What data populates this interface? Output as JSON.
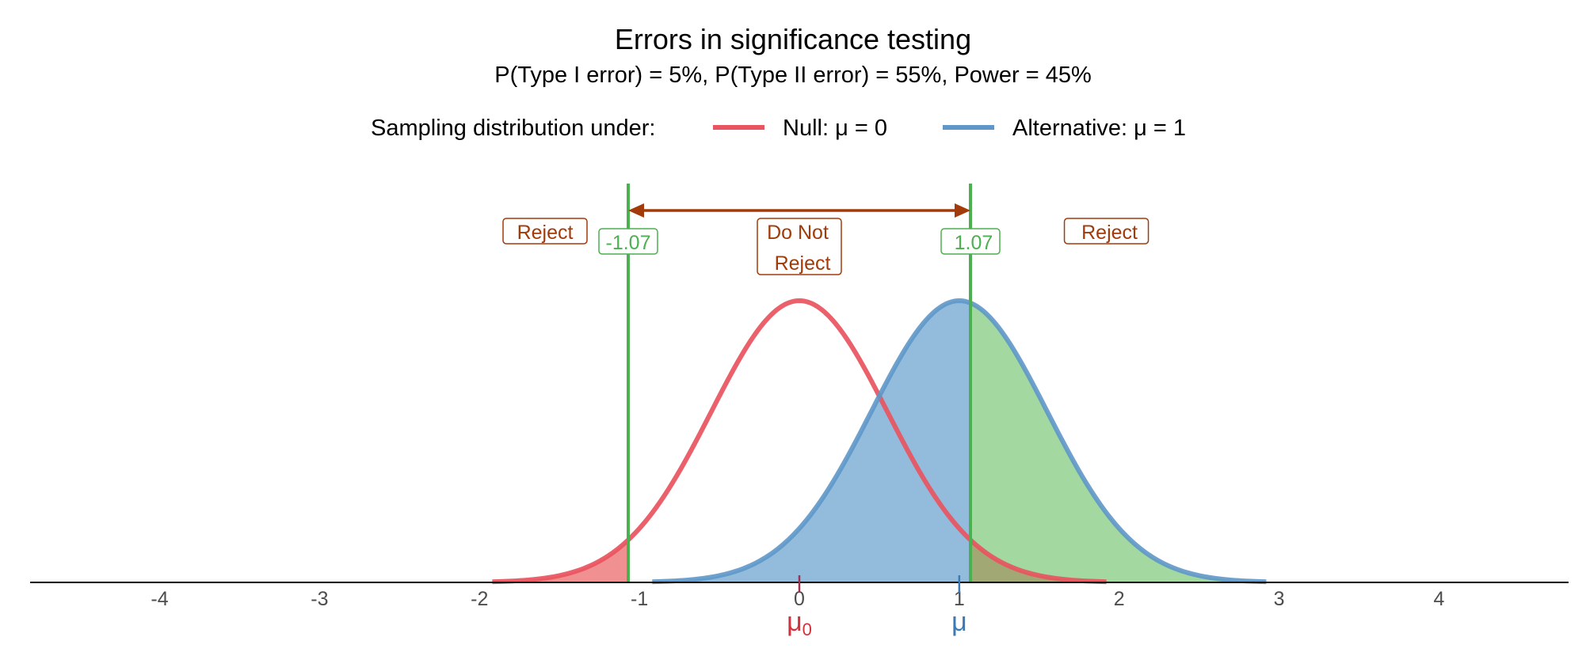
{
  "chart_data": {
    "type": "area",
    "title": "Errors in significance testing",
    "subtitle": "P(Type I error) = 5%, P(Type II error) = 55%, Power = 45%",
    "legend": {
      "title": "Sampling distribution under:",
      "placement": "top",
      "entries": [
        {
          "label": "Null: μ = 0",
          "color": "#e8545f"
        },
        {
          "label": "Alternative: μ = 1",
          "color": "#5e97c8"
        }
      ]
    },
    "xlim": [
      -4.8,
      4.8
    ],
    "x_ticks": [
      -4,
      -3,
      -2,
      -1,
      0,
      1,
      2,
      3,
      4
    ],
    "x_tick_labels": [
      "-4",
      "-3",
      "-2",
      "-1",
      "0",
      "1",
      "2",
      "3",
      "4"
    ],
    "grid": false,
    "series": [
      {
        "name": "Null: μ = 0",
        "mean": 0,
        "sd": 0.55,
        "x_range": [
          -1.92,
          1.92
        ],
        "color": "#e8545f"
      },
      {
        "name": "Alternative: μ = 1",
        "mean": 1,
        "sd": 0.55,
        "x_range": [
          -0.92,
          2.92
        ],
        "color": "#5e97c8"
      }
    ],
    "critical_values": [
      {
        "x": -1.07,
        "label": "-1.07"
      },
      {
        "x": 1.07,
        "label": "1.07"
      }
    ],
    "region_labels": {
      "reject_left": "Reject",
      "do_not_reject_line1": "Do Not",
      "do_not_reject_line2": "Reject",
      "reject_right": "Reject"
    },
    "mean_markers": [
      {
        "x": 0,
        "label": "μ",
        "subscript": "0",
        "color": "#d3303d"
      },
      {
        "x": 1,
        "label": "μ",
        "subscript": "",
        "color": "#3a7ab8"
      }
    ],
    "colors": {
      "null_line": "#e8545f",
      "null_fill": "#f08a8a",
      "alt_line": "#5e97c8",
      "alt_fill": "#93bcdc",
      "power_fill": "#a3d8a0",
      "critical_line": "#4caf50",
      "annotation": "#a33a0a"
    }
  }
}
